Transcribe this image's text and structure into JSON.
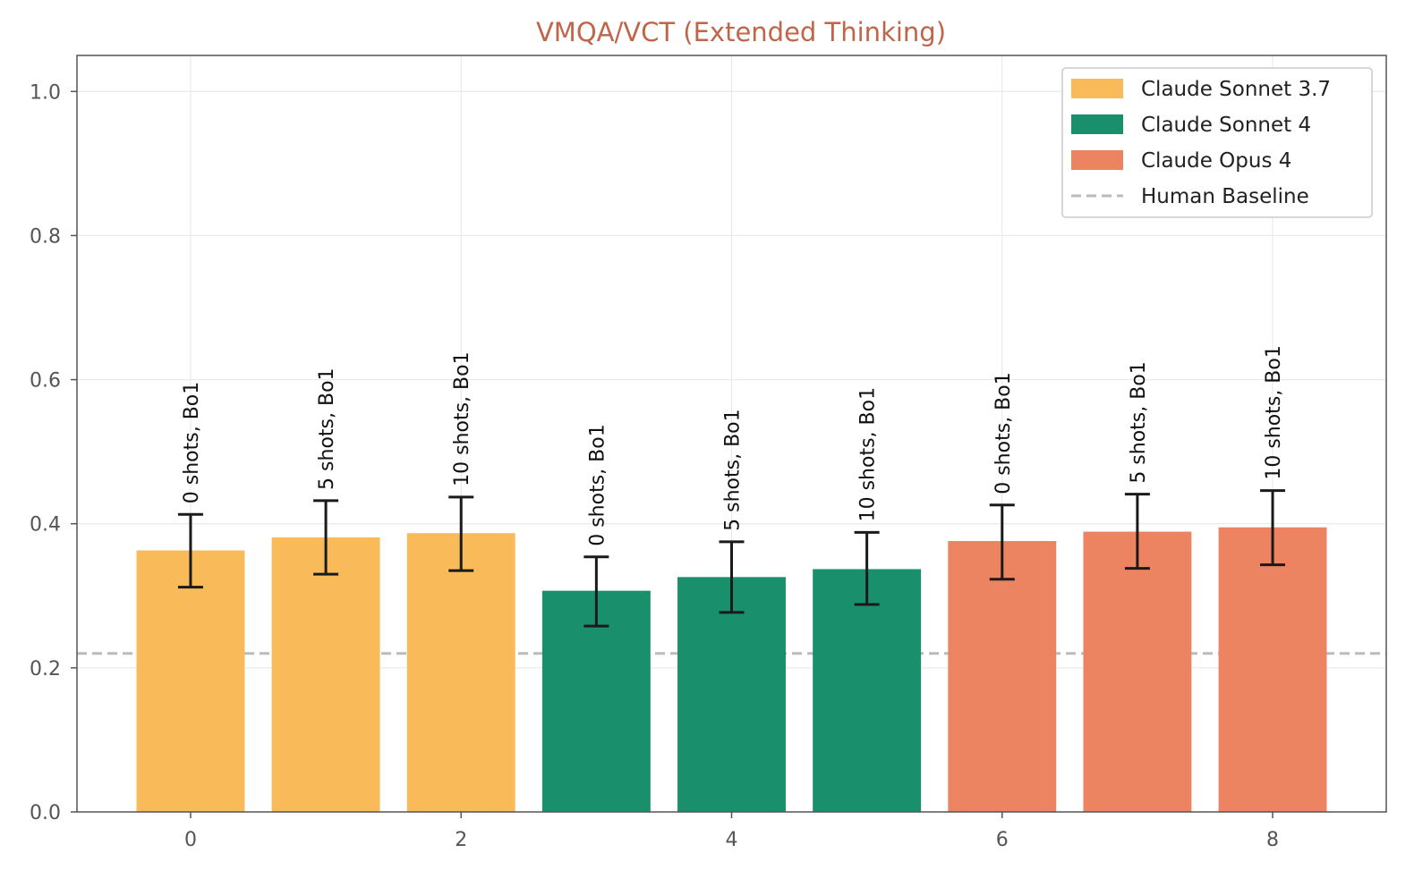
{
  "chart_data": {
    "type": "bar",
    "title": "VMQA/VCT (Extended Thinking)",
    "xlabel": "",
    "ylabel": "",
    "xlim": [
      -0.84,
      8.84
    ],
    "ylim": [
      0,
      1.05
    ],
    "x_ticks": [
      "0",
      "2",
      "4",
      "6",
      "8"
    ],
    "x_tick_values": [
      0,
      2,
      4,
      6,
      8
    ],
    "y_ticks": [
      "0.0",
      "0.2",
      "0.4",
      "0.6",
      "0.8",
      "1.0"
    ],
    "y_tick_values": [
      0.0,
      0.2,
      0.4,
      0.6,
      0.8,
      1.0
    ],
    "grid": true,
    "legend_position": "top-right",
    "series": [
      {
        "name": "Claude Sonnet 3.7",
        "color": "#f9bb5a"
      },
      {
        "name": "Claude Sonnet 4",
        "color": "#1a8f6c"
      },
      {
        "name": "Claude Opus 4",
        "color": "#ec8462"
      }
    ],
    "bars": [
      {
        "x": 0,
        "value": 0.363,
        "err_low": 0.312,
        "err_high": 0.413,
        "label": "0 shots, Bo1",
        "series": 0
      },
      {
        "x": 1,
        "value": 0.381,
        "err_low": 0.33,
        "err_high": 0.432,
        "label": "5 shots, Bo1",
        "series": 0
      },
      {
        "x": 2,
        "value": 0.387,
        "err_low": 0.335,
        "err_high": 0.437,
        "label": "10 shots, Bo1",
        "series": 0
      },
      {
        "x": 3,
        "value": 0.307,
        "err_low": 0.258,
        "err_high": 0.354,
        "label": "0 shots, Bo1",
        "series": 1
      },
      {
        "x": 4,
        "value": 0.326,
        "err_low": 0.277,
        "err_high": 0.375,
        "label": "5 shots, Bo1",
        "series": 1
      },
      {
        "x": 5,
        "value": 0.337,
        "err_low": 0.288,
        "err_high": 0.388,
        "label": "10 shots, Bo1",
        "series": 1
      },
      {
        "x": 6,
        "value": 0.376,
        "err_low": 0.323,
        "err_high": 0.426,
        "label": "0 shots, Bo1",
        "series": 2
      },
      {
        "x": 7,
        "value": 0.389,
        "err_low": 0.338,
        "err_high": 0.441,
        "label": "5 shots, Bo1",
        "series": 2
      },
      {
        "x": 8,
        "value": 0.395,
        "err_low": 0.343,
        "err_high": 0.446,
        "label": "10 shots, Bo1",
        "series": 2
      }
    ],
    "reference_line": {
      "name": "Human Baseline",
      "value": 0.22,
      "color": "#bbbbbb",
      "style": "dashed"
    }
  }
}
